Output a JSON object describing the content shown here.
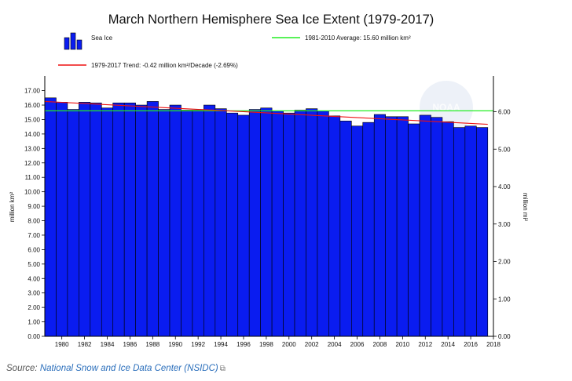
{
  "chart_data": {
    "type": "bar",
    "title": "March Northern Hemisphere Sea Ice Extent (1979-2017)",
    "ylabel": "million km²",
    "y2label": "million mi²",
    "ylim": [
      0,
      17.9
    ],
    "y2lim": [
      0,
      6.911
    ],
    "xlim": [
      1978.5,
      2018
    ],
    "yticks": [
      "0.00",
      "1.00",
      "2.00",
      "3.00",
      "4.00",
      "5.00",
      "6.00",
      "7.00",
      "8.00",
      "9.00",
      "10.00",
      "11.00",
      "12.00",
      "13.00",
      "14.00",
      "15.00",
      "16.00",
      "17.00"
    ],
    "y2ticks": [
      "0.00",
      "1.00",
      "2.00",
      "3.00",
      "4.00",
      "5.00",
      "6.00"
    ],
    "xticks": [
      "1980",
      "1982",
      "1984",
      "1986",
      "1988",
      "1990",
      "1992",
      "1994",
      "1996",
      "1998",
      "2000",
      "2002",
      "2004",
      "2006",
      "2008",
      "2010",
      "2012",
      "2014",
      "2016",
      "2018"
    ],
    "categories": [
      1979,
      1980,
      1981,
      1982,
      1983,
      1984,
      1985,
      1986,
      1987,
      1988,
      1989,
      1990,
      1991,
      1992,
      1993,
      1994,
      1995,
      1996,
      1997,
      1998,
      1999,
      2000,
      2001,
      2002,
      2003,
      2004,
      2005,
      2006,
      2007,
      2008,
      2009,
      2010,
      2011,
      2012,
      2013,
      2014,
      2015,
      2016,
      2017
    ],
    "series": [
      {
        "name": "Sea Ice",
        "color": "#0a1cf0",
        "values": [
          16.5,
          16.2,
          15.7,
          16.2,
          16.15,
          15.8,
          16.15,
          16.15,
          16.0,
          16.25,
          15.7,
          16.0,
          15.65,
          15.65,
          16.0,
          15.75,
          15.45,
          15.3,
          15.7,
          15.8,
          15.6,
          15.45,
          15.65,
          15.75,
          15.6,
          15.25,
          14.9,
          14.55,
          14.8,
          15.35,
          15.2,
          15.2,
          14.7,
          15.3,
          15.15,
          14.85,
          14.45,
          14.55,
          14.45
        ]
      }
    ],
    "average": {
      "label": "1981-2010 Average: 15.60 million km²",
      "value": 15.6,
      "color": "#22ee22"
    },
    "trend": {
      "label": "1979-2017 Trend: -0.42 million km²/Decade (-2.69%)",
      "start": 16.25,
      "end": 14.67,
      "color": "#ee1111"
    },
    "watermark": "NOAA",
    "grid": false,
    "legend_position": "top"
  },
  "source": {
    "prefix": "Source:",
    "link_text": "National Snow and Ice Data Center (NSIDC)",
    "icon": "external-link-icon"
  }
}
